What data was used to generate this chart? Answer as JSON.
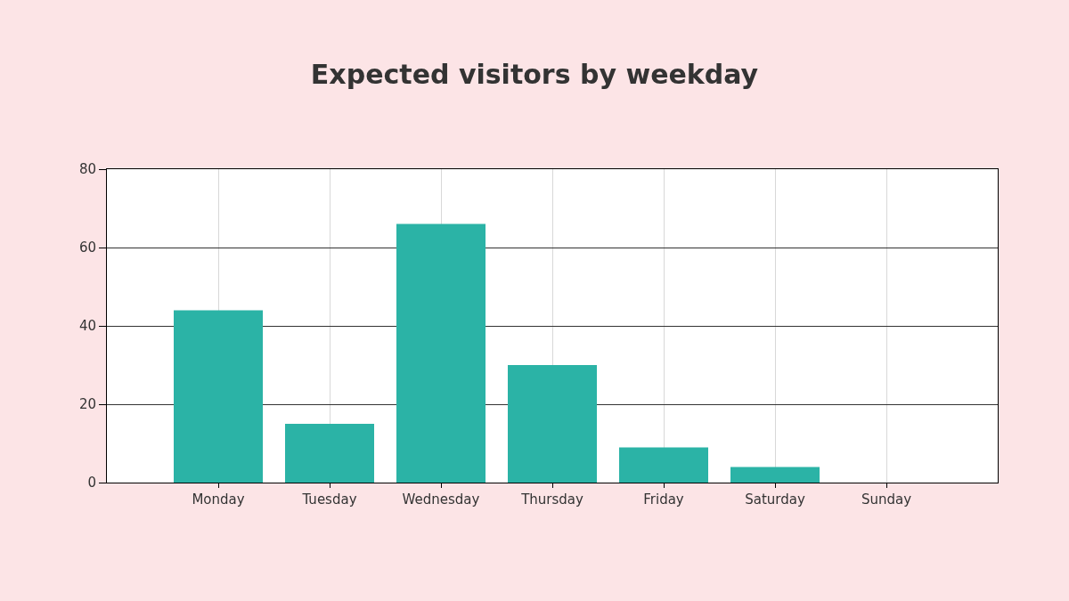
{
  "chart_data": {
    "type": "bar",
    "title": "Expected visitors by weekday",
    "categories": [
      "Monday",
      "Tuesday",
      "Wednesday",
      "Thursday",
      "Friday",
      "Saturday",
      "Sunday"
    ],
    "values": [
      44,
      15,
      66,
      30,
      9,
      4,
      0
    ],
    "color": "#2bb3a6",
    "ylim": [
      0,
      80
    ],
    "yticks": [
      0,
      20,
      40,
      60,
      80
    ],
    "grid": true,
    "legend": false
  }
}
